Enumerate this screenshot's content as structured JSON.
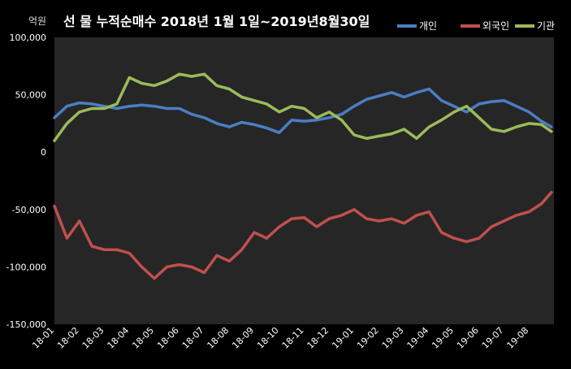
{
  "chart_data": {
    "type": "line",
    "title": "선 물 누적순매수  2018년 1월 1일~2019년8월30일",
    "unit": "억원",
    "ylim": [
      -150000,
      100000
    ],
    "yticks": [
      100000,
      50000,
      0,
      -50000,
      -100000,
      -150000
    ],
    "ytick_labels": [
      "100,000",
      "50,000",
      "0",
      "-50,000",
      "-100,000",
      "-150,000"
    ],
    "categories": [
      "18-01",
      "18-02",
      "18-03",
      "18-04",
      "18-05",
      "18-06",
      "18-07",
      "18-08",
      "18-09",
      "18-10",
      "18-11",
      "18-12",
      "19-01",
      "19-02",
      "19-03",
      "19-04",
      "19-05",
      "19-06",
      "19-07",
      "19-08"
    ],
    "x": [
      0,
      0.5,
      1,
      1.5,
      2,
      2.5,
      3,
      3.5,
      4,
      4.5,
      5,
      5.5,
      6,
      6.5,
      7,
      7.5,
      8,
      8.5,
      9,
      9.5,
      10,
      10.5,
      11,
      11.5,
      12,
      12.5,
      13,
      13.5,
      14,
      14.5,
      15,
      15.5,
      16,
      16.5,
      17,
      17.5,
      18,
      18.5,
      19,
      19.5,
      19.9
    ],
    "legend_position": "top-right",
    "grid": false,
    "background": "#262626",
    "series": [
      {
        "name": "개인",
        "color": "#4a7ec4",
        "values": [
          30000,
          40000,
          43000,
          42000,
          40000,
          38000,
          40000,
          41000,
          40000,
          38000,
          38000,
          33000,
          30000,
          25000,
          22000,
          26000,
          24000,
          21000,
          17000,
          28000,
          27000,
          28000,
          30000,
          33000,
          40000,
          46000,
          49000,
          52000,
          48000,
          52000,
          55000,
          45000,
          40000,
          35000,
          42000,
          44000,
          45000,
          40000,
          35000,
          27000,
          22000
        ]
      },
      {
        "name": "외국인",
        "color": "#c0504d",
        "values": [
          -47000,
          -75000,
          -60000,
          -82000,
          -85000,
          -85000,
          -88000,
          -100000,
          -110000,
          -100000,
          -98000,
          -100000,
          -105000,
          -90000,
          -95000,
          -85000,
          -70000,
          -75000,
          -65000,
          -58000,
          -57000,
          -65000,
          -58000,
          -55000,
          -50000,
          -58000,
          -60000,
          -58000,
          -62000,
          -55000,
          -52000,
          -70000,
          -75000,
          -78000,
          -75000,
          -65000,
          -60000,
          -55000,
          -52000,
          -45000,
          -35000
        ]
      },
      {
        "name": "기관",
        "color": "#9bbb59",
        "values": [
          10000,
          25000,
          35000,
          38000,
          38000,
          42000,
          65000,
          60000,
          58000,
          62000,
          68000,
          66000,
          68000,
          58000,
          55000,
          48000,
          45000,
          42000,
          35000,
          40000,
          38000,
          30000,
          35000,
          28000,
          15000,
          12000,
          14000,
          16000,
          20000,
          12000,
          22000,
          28000,
          35000,
          40000,
          30000,
          20000,
          18000,
          22000,
          25000,
          24000,
          18000
        ]
      }
    ]
  }
}
